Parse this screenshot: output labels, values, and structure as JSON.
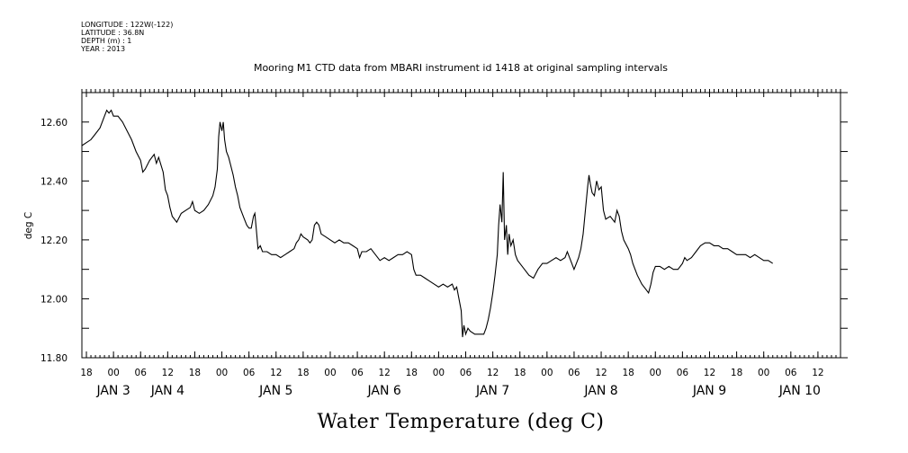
{
  "metadata_lines": [
    "LONGITUDE : 122W(-122)",
    "LATITUDE : 36.8N",
    "DEPTH (m) : 1",
    "YEAR : 2013"
  ],
  "chart_data": {
    "type": "line",
    "title": "Mooring M1 CTD data from MBARI instrument id 1418 at original sampling intervals",
    "xlabel": "Water Temperature (deg C)",
    "ylabel": "deg C",
    "ylim": [
      11.8,
      12.7
    ],
    "yticks": [
      11.8,
      12.0,
      12.2,
      12.4,
      12.6
    ],
    "ytick_labels": [
      "11.80",
      "12.00",
      "12.20",
      "12.40",
      "12.60"
    ],
    "xlim_hours": [
      -7,
      161
    ],
    "xticks_hours": [
      -6,
      0,
      6,
      12,
      18,
      24,
      30,
      36,
      42,
      48,
      54,
      60,
      66,
      72,
      78,
      84,
      90,
      96,
      102,
      108,
      114,
      120,
      126,
      132,
      138,
      144,
      150,
      156
    ],
    "xtick_labels": [
      "18",
      "00",
      "06",
      "12",
      "18",
      "00",
      "06",
      "12",
      "18",
      "00",
      "06",
      "12",
      "18",
      "00",
      "06",
      "12",
      "18",
      "00",
      "06",
      "12",
      "18",
      "00",
      "06",
      "12",
      "18",
      "00",
      "06",
      "12"
    ],
    "day_labels": [
      {
        "label": "JAN  3",
        "hours": 0
      },
      {
        "label": "JAN  4",
        "hours": 12
      },
      {
        "label": "JAN  5",
        "hours": 36
      },
      {
        "label": "JAN  6",
        "hours": 60
      },
      {
        "label": "JAN  7",
        "hours": 84
      },
      {
        "label": "JAN  8",
        "hours": 108
      },
      {
        "label": "JAN  9",
        "hours": 132
      },
      {
        "label": "JAN 10",
        "hours": 152
      }
    ],
    "grid": false,
    "series": [
      {
        "values": [
          [
            -7,
            12.52
          ],
          [
            -6,
            12.53
          ],
          [
            -5,
            12.54
          ],
          [
            -4,
            12.56
          ],
          [
            -3,
            12.58
          ],
          [
            -2,
            12.62
          ],
          [
            -1.5,
            12.64
          ],
          [
            -1,
            12.63
          ],
          [
            -0.5,
            12.64
          ],
          [
            0,
            12.62
          ],
          [
            1,
            12.62
          ],
          [
            2,
            12.6
          ],
          [
            3,
            12.57
          ],
          [
            4,
            12.54
          ],
          [
            5,
            12.5
          ],
          [
            6,
            12.47
          ],
          [
            6.5,
            12.43
          ],
          [
            7,
            12.44
          ],
          [
            8,
            12.47
          ],
          [
            9,
            12.49
          ],
          [
            9.5,
            12.46
          ],
          [
            10,
            12.48
          ],
          [
            11,
            12.43
          ],
          [
            11.5,
            12.37
          ],
          [
            12,
            12.35
          ],
          [
            12.5,
            12.31
          ],
          [
            13,
            12.28
          ],
          [
            13.5,
            12.27
          ],
          [
            14,
            12.26
          ],
          [
            15,
            12.29
          ],
          [
            16,
            12.3
          ],
          [
            17,
            12.31
          ],
          [
            17.5,
            12.33
          ],
          [
            18,
            12.3
          ],
          [
            19,
            12.29
          ],
          [
            20,
            12.3
          ],
          [
            21,
            12.32
          ],
          [
            22,
            12.35
          ],
          [
            22.5,
            12.38
          ],
          [
            23,
            12.44
          ],
          [
            23.3,
            12.55
          ],
          [
            23.6,
            12.6
          ],
          [
            24,
            12.57
          ],
          [
            24.3,
            12.6
          ],
          [
            24.6,
            12.54
          ],
          [
            25,
            12.5
          ],
          [
            25.5,
            12.48
          ],
          [
            26,
            12.45
          ],
          [
            26.5,
            12.42
          ],
          [
            27,
            12.38
          ],
          [
            27.5,
            12.35
          ],
          [
            28,
            12.31
          ],
          [
            28.5,
            12.29
          ],
          [
            29,
            12.27
          ],
          [
            29.5,
            12.25
          ],
          [
            30,
            12.24
          ],
          [
            30.5,
            12.24
          ],
          [
            31,
            12.28
          ],
          [
            31.3,
            12.29
          ],
          [
            31.6,
            12.24
          ],
          [
            32,
            12.17
          ],
          [
            32.5,
            12.18
          ],
          [
            33,
            12.16
          ],
          [
            34,
            12.16
          ],
          [
            35,
            12.15
          ],
          [
            36,
            12.15
          ],
          [
            37,
            12.14
          ],
          [
            38,
            12.15
          ],
          [
            39,
            12.16
          ],
          [
            40,
            12.17
          ],
          [
            40.5,
            12.19
          ],
          [
            41,
            12.2
          ],
          [
            41.5,
            12.22
          ],
          [
            42,
            12.21
          ],
          [
            43,
            12.2
          ],
          [
            43.5,
            12.19
          ],
          [
            44,
            12.2
          ],
          [
            44.5,
            12.25
          ],
          [
            45,
            12.26
          ],
          [
            45.5,
            12.25
          ],
          [
            46,
            12.22
          ],
          [
            47,
            12.21
          ],
          [
            48,
            12.2
          ],
          [
            49,
            12.19
          ],
          [
            50,
            12.2
          ],
          [
            51,
            12.19
          ],
          [
            52,
            12.19
          ],
          [
            53,
            12.18
          ],
          [
            54,
            12.17
          ],
          [
            54.5,
            12.14
          ],
          [
            55,
            12.16
          ],
          [
            56,
            12.16
          ],
          [
            57,
            12.17
          ],
          [
            58,
            12.15
          ],
          [
            59,
            12.13
          ],
          [
            60,
            12.14
          ],
          [
            61,
            12.13
          ],
          [
            62,
            12.14
          ],
          [
            63,
            12.15
          ],
          [
            64,
            12.15
          ],
          [
            65,
            12.16
          ],
          [
            66,
            12.15
          ],
          [
            66.5,
            12.1
          ],
          [
            67,
            12.08
          ],
          [
            68,
            12.08
          ],
          [
            69,
            12.07
          ],
          [
            70,
            12.06
          ],
          [
            71,
            12.05
          ],
          [
            72,
            12.04
          ],
          [
            73,
            12.05
          ],
          [
            74,
            12.04
          ],
          [
            75,
            12.05
          ],
          [
            75.5,
            12.03
          ],
          [
            76,
            12.04
          ],
          [
            76.5,
            12.0
          ],
          [
            77,
            11.96
          ],
          [
            77.3,
            11.87
          ],
          [
            77.6,
            11.91
          ],
          [
            78,
            11.88
          ],
          [
            78.5,
            11.9
          ],
          [
            79,
            11.89
          ],
          [
            80,
            11.88
          ],
          [
            81,
            11.88
          ],
          [
            82,
            11.88
          ],
          [
            82.5,
            11.9
          ],
          [
            83,
            11.93
          ],
          [
            83.5,
            11.97
          ],
          [
            84,
            12.02
          ],
          [
            84.5,
            12.08
          ],
          [
            85,
            12.15
          ],
          [
            85.3,
            12.25
          ],
          [
            85.6,
            12.32
          ],
          [
            86,
            12.26
          ],
          [
            86.3,
            12.43
          ],
          [
            86.6,
            12.2
          ],
          [
            87,
            12.25
          ],
          [
            87.3,
            12.15
          ],
          [
            87.6,
            12.22
          ],
          [
            88,
            12.18
          ],
          [
            88.5,
            12.2
          ],
          [
            89,
            12.15
          ],
          [
            89.5,
            12.13
          ],
          [
            90,
            12.12
          ],
          [
            91,
            12.1
          ],
          [
            92,
            12.08
          ],
          [
            93,
            12.07
          ],
          [
            94,
            12.1
          ],
          [
            95,
            12.12
          ],
          [
            96,
            12.12
          ],
          [
            97,
            12.13
          ],
          [
            98,
            12.14
          ],
          [
            99,
            12.13
          ],
          [
            100,
            12.14
          ],
          [
            100.5,
            12.16
          ],
          [
            101,
            12.14
          ],
          [
            102,
            12.1
          ],
          [
            102.5,
            12.12
          ],
          [
            103,
            12.14
          ],
          [
            103.5,
            12.17
          ],
          [
            104,
            12.22
          ],
          [
            104.5,
            12.3
          ],
          [
            105,
            12.38
          ],
          [
            105.3,
            12.42
          ],
          [
            105.6,
            12.39
          ],
          [
            106,
            12.36
          ],
          [
            106.5,
            12.35
          ],
          [
            107,
            12.4
          ],
          [
            107.5,
            12.37
          ],
          [
            108,
            12.38
          ],
          [
            108.5,
            12.3
          ],
          [
            109,
            12.27
          ],
          [
            110,
            12.28
          ],
          [
            111,
            12.26
          ],
          [
            111.5,
            12.3
          ],
          [
            112,
            12.28
          ],
          [
            112.5,
            12.23
          ],
          [
            113,
            12.2
          ],
          [
            114,
            12.17
          ],
          [
            114.5,
            12.15
          ],
          [
            115,
            12.12
          ],
          [
            116,
            12.08
          ],
          [
            117,
            12.05
          ],
          [
            118,
            12.03
          ],
          [
            118.5,
            12.02
          ],
          [
            119,
            12.05
          ],
          [
            119.5,
            12.09
          ],
          [
            120,
            12.11
          ],
          [
            121,
            12.11
          ],
          [
            122,
            12.1
          ],
          [
            123,
            12.11
          ],
          [
            124,
            12.1
          ],
          [
            125,
            12.1
          ],
          [
            126,
            12.12
          ],
          [
            126.5,
            12.14
          ],
          [
            127,
            12.13
          ],
          [
            128,
            12.14
          ],
          [
            129,
            12.16
          ],
          [
            130,
            12.18
          ],
          [
            131,
            12.19
          ],
          [
            132,
            12.19
          ],
          [
            133,
            12.18
          ],
          [
            134,
            12.18
          ],
          [
            135,
            12.17
          ],
          [
            136,
            12.17
          ],
          [
            137,
            12.16
          ],
          [
            138,
            12.15
          ],
          [
            139,
            12.15
          ],
          [
            140,
            12.15
          ],
          [
            141,
            12.14
          ],
          [
            142,
            12.15
          ],
          [
            143,
            12.14
          ],
          [
            144,
            12.13
          ],
          [
            145,
            12.13
          ],
          [
            146,
            12.12
          ]
        ]
      }
    ]
  }
}
